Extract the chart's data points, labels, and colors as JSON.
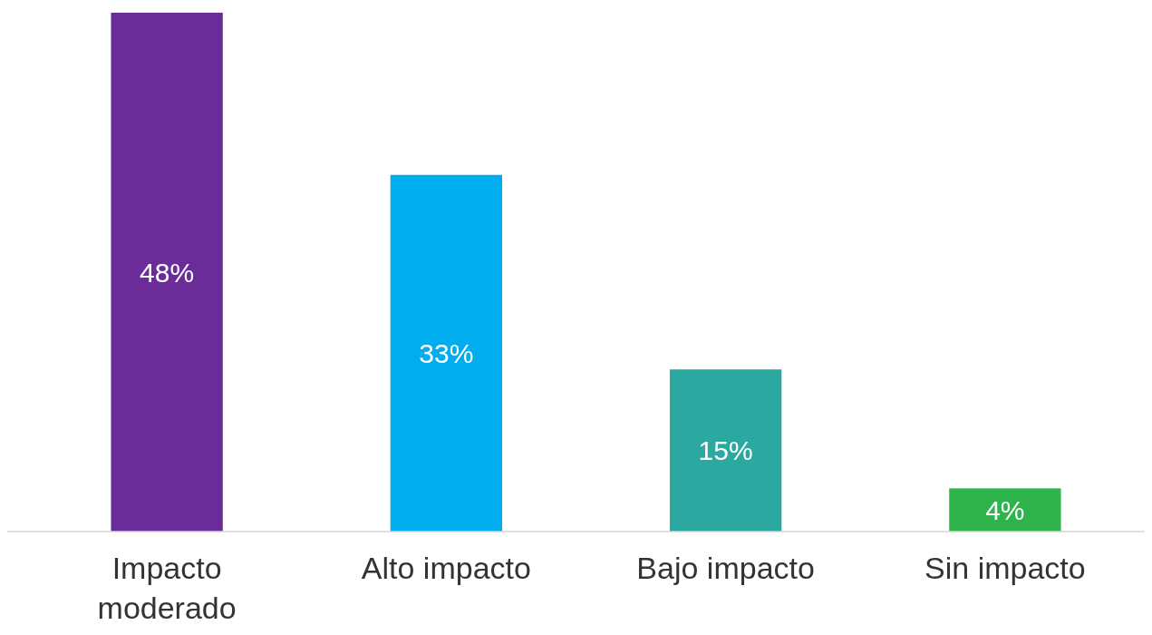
{
  "chart_data": {
    "type": "bar",
    "categories": [
      "Impacto moderado",
      "Alto impacto",
      "Bajo impacto",
      "Sin impacto"
    ],
    "values": [
      48,
      33,
      15,
      4
    ],
    "colors": [
      "#6a2c99",
      "#00aeef",
      "#2ba89f",
      "#2fb44b"
    ],
    "value_labels": [
      "48%",
      "33%",
      "15%",
      "4%"
    ]
  }
}
